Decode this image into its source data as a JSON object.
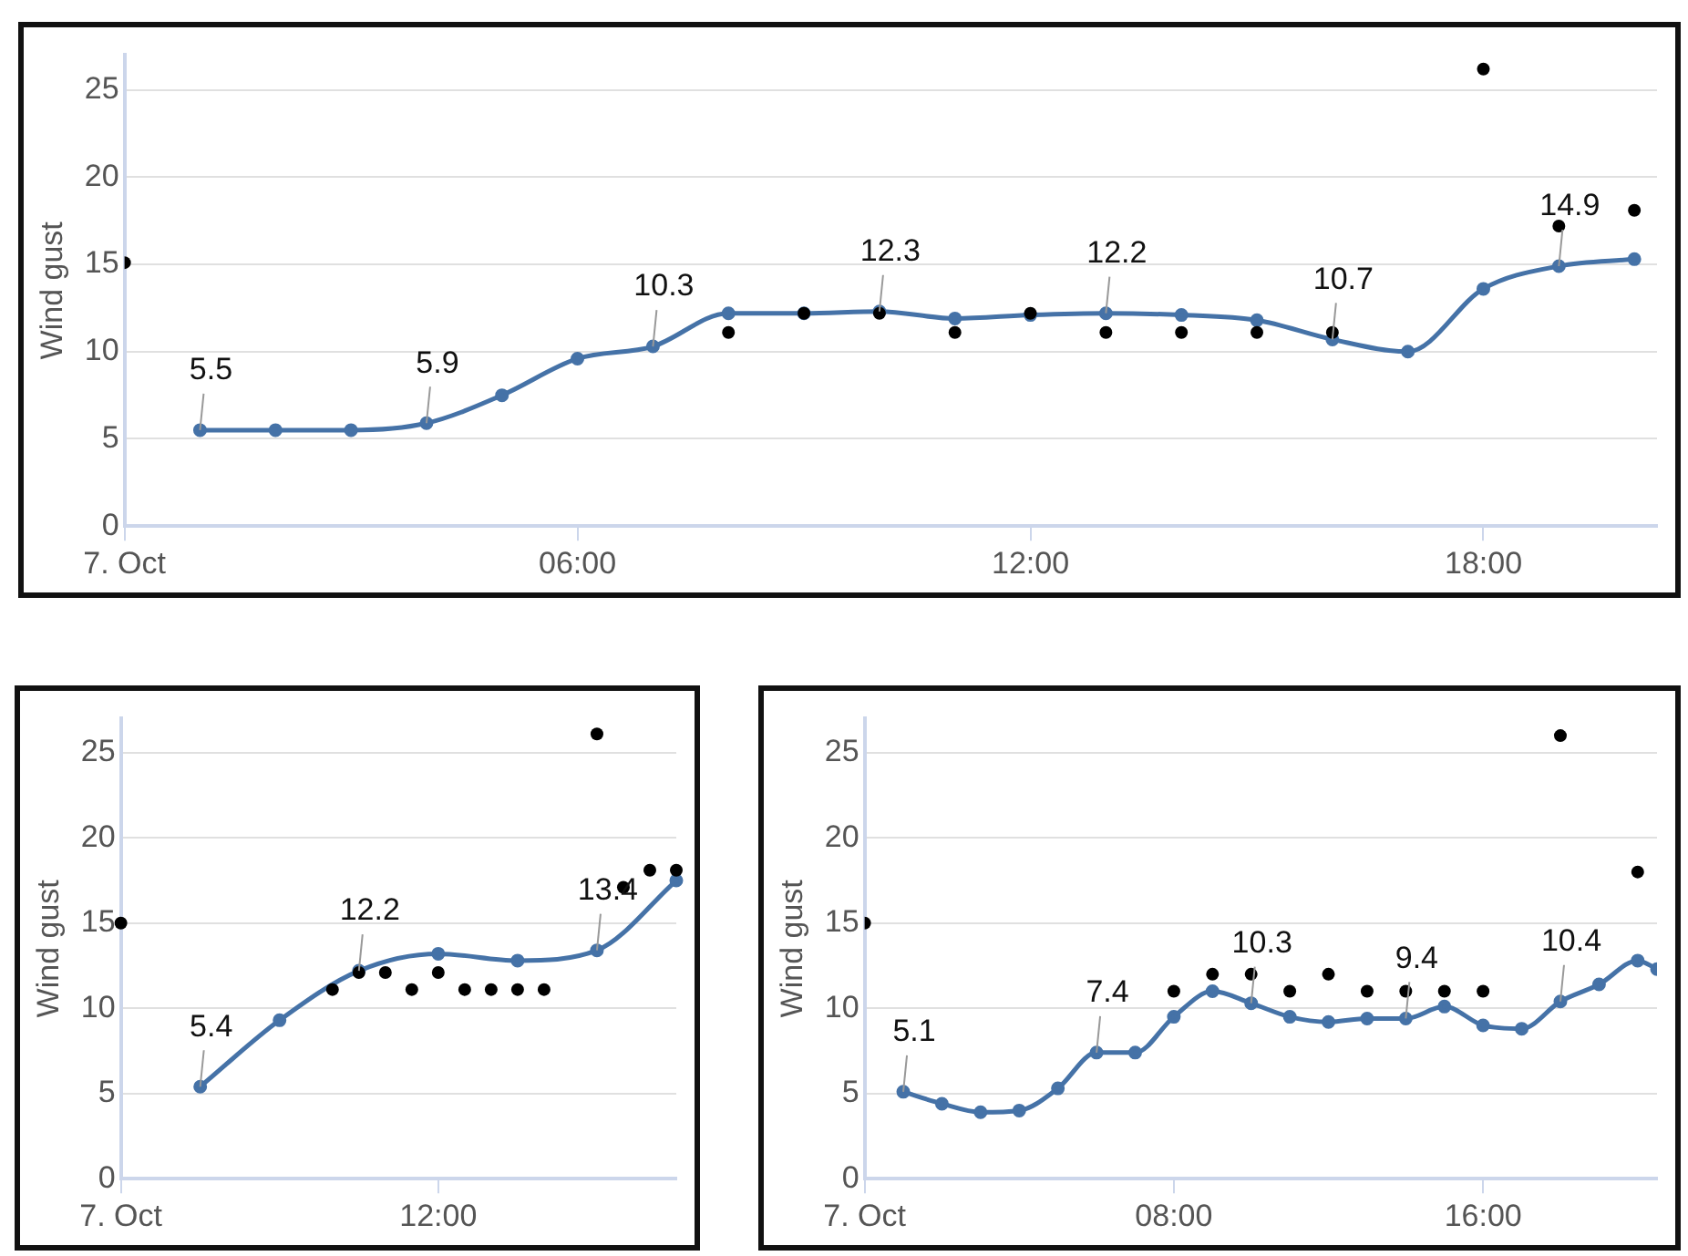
{
  "chart_data": [
    {
      "type": "line",
      "ylabel": "Wind gust",
      "xlim": [
        0,
        20.3
      ],
      "xticks": [
        {
          "value": 0,
          "label": "7. Oct"
        },
        {
          "value": 6,
          "label": "06:00"
        },
        {
          "value": 12,
          "label": "12:00"
        },
        {
          "value": 18,
          "label": "18:00"
        }
      ],
      "ylim": [
        0,
        27
      ],
      "yticks": [
        0,
        5,
        10,
        15,
        20,
        25
      ],
      "grid": "y",
      "legend": false,
      "marker": "circle",
      "series": [
        {
          "type": "line",
          "color": "#4572a7",
          "x": [
            1,
            2,
            3,
            4,
            5,
            6,
            7,
            8,
            9,
            10,
            11,
            12,
            13,
            14,
            15,
            16,
            17,
            18,
            19,
            20
          ],
          "values": [
            5.5,
            5.5,
            5.5,
            5.9,
            7.5,
            9.6,
            10.3,
            12.2,
            12.2,
            12.3,
            11.9,
            12.1,
            12.2,
            12.1,
            11.8,
            10.7,
            10.0,
            13.6,
            14.9,
            15.3
          ],
          "value_labels": [
            "5.5",
            null,
            null,
            "5.9",
            null,
            null,
            "10.3",
            null,
            null,
            "12.3",
            null,
            null,
            "12.2",
            null,
            null,
            "10.7",
            null,
            null,
            "14.9",
            null
          ]
        },
        {
          "type": "scatter",
          "color": "#000000",
          "x": [
            0,
            8,
            9,
            10,
            11,
            12,
            13,
            14,
            15,
            16,
            18,
            19,
            20
          ],
          "values": [
            15.1,
            11.1,
            12.2,
            12.2,
            11.1,
            12.2,
            11.1,
            11.1,
            11.1,
            11.1,
            26.2,
            17.2,
            18.1
          ]
        }
      ]
    },
    {
      "type": "line",
      "ylabel": "Wind gust",
      "categories": [
        "7. Oct",
        null,
        null,
        null,
        null,
        null,
        null,
        null,
        null,
        null,
        null,
        null,
        "12:00",
        null,
        null,
        null,
        null,
        null,
        null,
        null,
        null,
        null
      ],
      "ylim": [
        0,
        27
      ],
      "yticks": [
        0,
        5,
        10,
        15,
        20,
        25
      ],
      "grid": "y",
      "legend": false,
      "marker": "circle",
      "series": [
        {
          "type": "line",
          "color": "#4572a7",
          "values": [
            null,
            null,
            null,
            5.4,
            null,
            null,
            9.3,
            null,
            null,
            12.2,
            null,
            null,
            13.2,
            null,
            null,
            12.8,
            null,
            null,
            13.4,
            null,
            null,
            17.5
          ],
          "value_labels": [
            null,
            null,
            null,
            "5.4",
            null,
            null,
            null,
            null,
            null,
            "12.2",
            null,
            null,
            null,
            null,
            null,
            null,
            null,
            null,
            "13.4",
            null,
            null,
            null
          ]
        },
        {
          "type": "scatter",
          "color": "#000000",
          "values": [
            15.0,
            null,
            null,
            null,
            null,
            null,
            null,
            null,
            11.1,
            12.1,
            12.1,
            11.1,
            12.1,
            11.1,
            11.1,
            11.1,
            11.1,
            null,
            26.1,
            17.1,
            18.1,
            18.1
          ]
        }
      ]
    },
    {
      "type": "line",
      "ylabel": "Wind gust",
      "xlim": [
        0,
        20.5
      ],
      "xticks": [
        {
          "value": 0,
          "label": "7. Oct"
        },
        {
          "value": 8,
          "label": "08:00"
        },
        {
          "value": 16,
          "label": "16:00"
        }
      ],
      "ylim": [
        0,
        27
      ],
      "yticks": [
        0,
        5,
        10,
        15,
        20,
        25
      ],
      "grid": "y",
      "legend": false,
      "marker": "circle",
      "series": [
        {
          "type": "line",
          "color": "#4572a7",
          "x": [
            1,
            2,
            3,
            4,
            5,
            6,
            7,
            8,
            9,
            10,
            11,
            12,
            13,
            14,
            15,
            16,
            17,
            18,
            19,
            20,
            20.5
          ],
          "values": [
            5.1,
            4.4,
            3.9,
            4.0,
            5.3,
            7.4,
            7.4,
            9.5,
            11.0,
            10.3,
            9.5,
            9.2,
            9.4,
            9.4,
            10.1,
            9.0,
            8.8,
            10.4,
            11.4,
            12.8,
            12.3
          ],
          "value_labels": [
            "5.1",
            null,
            null,
            null,
            null,
            "7.4",
            null,
            null,
            null,
            "10.3",
            null,
            null,
            null,
            "9.4",
            null,
            null,
            null,
            "10.4",
            null,
            null,
            null
          ]
        },
        {
          "type": "scatter",
          "color": "#000000",
          "x": [
            0,
            8,
            9,
            10,
            11,
            12,
            13,
            14,
            15,
            16,
            18,
            20
          ],
          "values": [
            15.0,
            11.0,
            12.0,
            12.0,
            11.0,
            12.0,
            11.0,
            11.0,
            11.0,
            11.0,
            26.0,
            18.0
          ]
        }
      ]
    }
  ]
}
